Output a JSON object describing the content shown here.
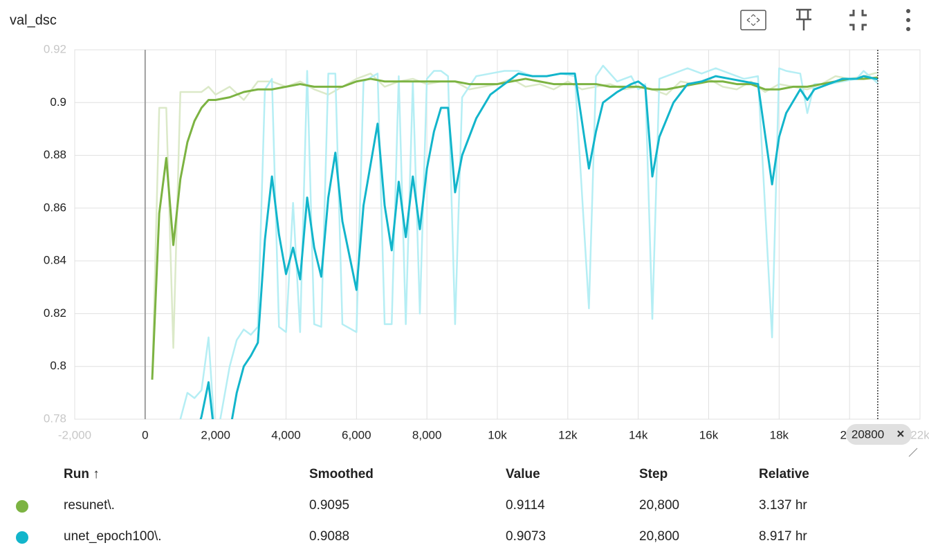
{
  "chart_data": {
    "type": "line",
    "title": "val_dsc",
    "xlim": [
      -2000,
      22000
    ],
    "xticks": [
      {
        "value": -2000,
        "label": "-2,000"
      },
      0,
      {
        "value": 2000,
        "label": "2,000"
      },
      {
        "value": 4000,
        "label": "4,000"
      },
      {
        "value": 6000,
        "label": "6,000"
      },
      {
        "value": 8000,
        "label": "8,000"
      },
      {
        "value": 10000,
        "label": "10k"
      },
      {
        "value": 12000,
        "label": "12k"
      },
      {
        "value": 14000,
        "label": "14k"
      },
      {
        "value": 16000,
        "label": "16k"
      },
      {
        "value": 18000,
        "label": "18k"
      },
      {
        "value": 20000,
        "label": "20k"
      },
      {
        "value": 22000,
        "label": "22k"
      }
    ],
    "ylim": [
      0.78,
      0.92
    ],
    "yticks": [
      0.78,
      0.8,
      0.82,
      0.84,
      0.86,
      0.88,
      0.9,
      0.92
    ],
    "grid": true,
    "hover_step": 20800,
    "series": [
      {
        "name": "resunet\\.",
        "color": "#7cb342",
        "raw_color": "#dbe9c8",
        "x": [
          200,
          400,
          600,
          800,
          1000,
          1200,
          1400,
          1600,
          1800,
          2000,
          2400,
          2800,
          3200,
          3600,
          4000,
          4400,
          4800,
          5200,
          5600,
          6000,
          6400,
          6800,
          7200,
          7600,
          8000,
          8400,
          8800,
          9200,
          9600,
          10000,
          10400,
          10800,
          11200,
          11600,
          12000,
          12400,
          12800,
          13200,
          13600,
          14000,
          14400,
          14800,
          15200,
          15600,
          16000,
          16400,
          16800,
          17200,
          17600,
          18000,
          18400,
          18800,
          19200,
          19600,
          20000,
          20400,
          20800
        ],
        "values": [
          0.795,
          0.898,
          0.898,
          0.807,
          0.904,
          0.904,
          0.904,
          0.904,
          0.906,
          0.903,
          0.906,
          0.901,
          0.908,
          0.908,
          0.906,
          0.908,
          0.905,
          0.903,
          0.906,
          0.909,
          0.911,
          0.906,
          0.908,
          0.909,
          0.907,
          0.908,
          0.908,
          0.905,
          0.906,
          0.907,
          0.909,
          0.906,
          0.907,
          0.905,
          0.908,
          0.905,
          0.906,
          0.907,
          0.905,
          0.906,
          0.905,
          0.903,
          0.908,
          0.907,
          0.909,
          0.906,
          0.905,
          0.908,
          0.904,
          0.907,
          0.906,
          0.905,
          0.907,
          0.91,
          0.909,
          0.91,
          0.9114
        ],
        "smoothed": [
          0.795,
          0.858,
          0.879,
          0.846,
          0.871,
          0.885,
          0.893,
          0.898,
          0.901,
          0.901,
          0.902,
          0.904,
          0.905,
          0.905,
          0.906,
          0.907,
          0.906,
          0.906,
          0.906,
          0.908,
          0.909,
          0.908,
          0.908,
          0.908,
          0.908,
          0.908,
          0.908,
          0.907,
          0.907,
          0.907,
          0.908,
          0.909,
          0.908,
          0.907,
          0.907,
          0.907,
          0.907,
          0.906,
          0.906,
          0.906,
          0.905,
          0.905,
          0.906,
          0.907,
          0.908,
          0.908,
          0.907,
          0.907,
          0.905,
          0.905,
          0.906,
          0.906,
          0.907,
          0.908,
          0.909,
          0.909,
          0.9095
        ]
      },
      {
        "name": "unet_epoch100\\.",
        "color": "#12b5cb",
        "raw_color": "#b5eef4",
        "x": [
          1000,
          1200,
          1400,
          1600,
          1800,
          2000,
          2400,
          2600,
          2800,
          3000,
          3200,
          3400,
          3600,
          3800,
          4000,
          4200,
          4400,
          4600,
          4800,
          5000,
          5200,
          5400,
          5600,
          6000,
          6200,
          6600,
          6800,
          7000,
          7200,
          7400,
          7600,
          7800,
          8000,
          8200,
          8400,
          8600,
          8800,
          9000,
          9400,
          9800,
          10200,
          10600,
          11000,
          11400,
          11800,
          12200,
          12600,
          12800,
          13000,
          13400,
          13800,
          14000,
          14200,
          14400,
          14600,
          15000,
          15400,
          15800,
          16200,
          16600,
          17000,
          17400,
          17800,
          18000,
          18200,
          18600,
          18800,
          19000,
          19400,
          19800,
          20200,
          20400,
          20800
        ],
        "values": [
          0.78,
          0.79,
          0.788,
          0.791,
          0.811,
          0.77,
          0.8,
          0.81,
          0.814,
          0.812,
          0.815,
          0.905,
          0.909,
          0.815,
          0.813,
          0.862,
          0.813,
          0.912,
          0.816,
          0.815,
          0.911,
          0.911,
          0.816,
          0.813,
          0.908,
          0.911,
          0.816,
          0.816,
          0.91,
          0.816,
          0.908,
          0.82,
          0.909,
          0.912,
          0.912,
          0.91,
          0.816,
          0.902,
          0.91,
          0.911,
          0.912,
          0.912,
          0.91,
          0.91,
          0.911,
          0.91,
          0.822,
          0.91,
          0.914,
          0.908,
          0.91,
          0.905,
          0.907,
          0.818,
          0.909,
          0.911,
          0.913,
          0.911,
          0.913,
          0.911,
          0.909,
          0.91,
          0.811,
          0.913,
          0.912,
          0.911,
          0.896,
          0.907,
          0.907,
          0.908,
          0.909,
          0.912,
          0.9073
        ],
        "smoothed": [
          0.765,
          0.77,
          0.772,
          0.781,
          0.794,
          0.77,
          0.775,
          0.79,
          0.8,
          0.804,
          0.809,
          0.848,
          0.872,
          0.85,
          0.835,
          0.845,
          0.833,
          0.864,
          0.845,
          0.834,
          0.864,
          0.881,
          0.855,
          0.829,
          0.861,
          0.892,
          0.861,
          0.844,
          0.87,
          0.849,
          0.872,
          0.852,
          0.875,
          0.889,
          0.898,
          0.898,
          0.866,
          0.88,
          0.894,
          0.903,
          0.907,
          0.911,
          0.91,
          0.91,
          0.911,
          0.911,
          0.875,
          0.889,
          0.9,
          0.904,
          0.907,
          0.908,
          0.906,
          0.872,
          0.887,
          0.9,
          0.907,
          0.908,
          0.91,
          0.909,
          0.908,
          0.907,
          0.869,
          0.887,
          0.896,
          0.905,
          0.901,
          0.905,
          0.907,
          0.909,
          0.909,
          0.91,
          0.9088
        ]
      }
    ]
  },
  "table": {
    "headers": [
      "Run ↑",
      "Smoothed",
      "Value",
      "Step",
      "Relative"
    ],
    "rows": [
      [
        "0.9095",
        "0.9114",
        "20,800",
        "3.137 hr"
      ],
      [
        "0.9088",
        "0.9073",
        "20,800",
        "8.917 hr"
      ]
    ]
  }
}
